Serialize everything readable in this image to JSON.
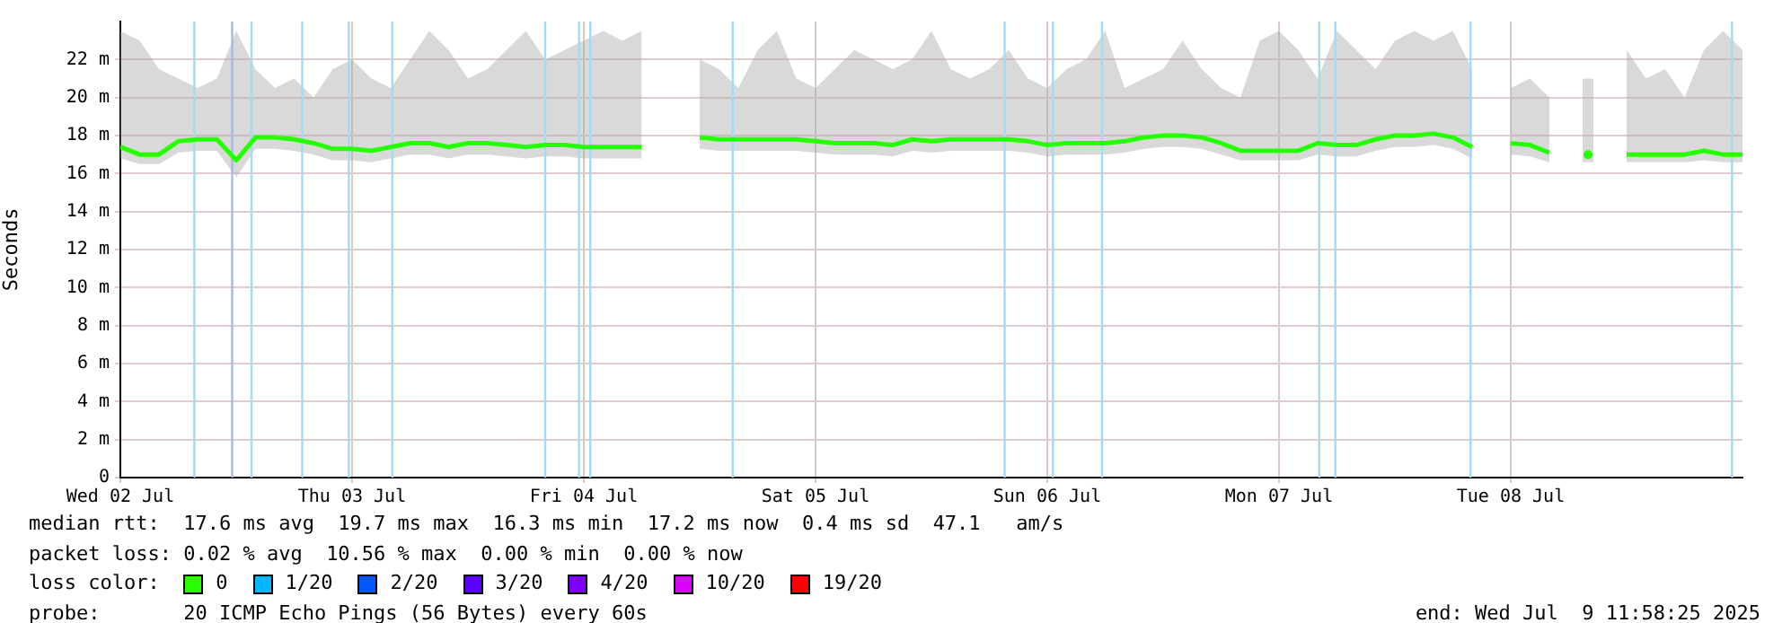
{
  "chart_data": {
    "type": "line",
    "ylabel": "Seconds",
    "xlim": [
      "2025-07-02T12:00",
      "2025-07-09T12:00"
    ],
    "xticks": [
      {
        "value": "2025-07-02T12:00",
        "label": "Wed 02 Jul"
      },
      {
        "value": "2025-07-03T12:00",
        "label": "Thu 03 Jul"
      },
      {
        "value": "2025-07-04T12:00",
        "label": "Fri 04 Jul"
      },
      {
        "value": "2025-07-05T12:00",
        "label": "Sat 05 Jul"
      },
      {
        "value": "2025-07-06T12:00",
        "label": "Sun 06 Jul"
      },
      {
        "value": "2025-07-07T12:00",
        "label": "Mon 07 Jul"
      },
      {
        "value": "2025-07-08T12:00",
        "label": "Tue 08 Jul"
      }
    ],
    "ylim": [
      0,
      24
    ],
    "yticks": [
      0,
      {
        "value": 2,
        "label": "2 m"
      },
      {
        "value": 4,
        "label": "4 m"
      },
      {
        "value": 6,
        "label": "6 m"
      },
      {
        "value": 8,
        "label": "8 m"
      },
      {
        "value": 10,
        "label": "10 m"
      },
      {
        "value": 12,
        "label": "12 m"
      },
      {
        "value": 14,
        "label": "14 m"
      },
      {
        "value": 16,
        "label": "16 m"
      },
      {
        "value": 18,
        "label": "18 m"
      },
      {
        "value": 20,
        "label": "20 m"
      },
      {
        "value": 22,
        "label": "22 m"
      }
    ],
    "x": [
      "2025-07-02T12:00",
      "2025-07-02T14:00",
      "2025-07-02T16:00",
      "2025-07-02T18:00",
      "2025-07-02T20:00",
      "2025-07-02T22:00",
      "2025-07-03T00:00",
      "2025-07-03T02:00",
      "2025-07-03T04:00",
      "2025-07-03T06:00",
      "2025-07-03T08:00",
      "2025-07-03T10:00",
      "2025-07-03T12:00",
      "2025-07-03T14:00",
      "2025-07-03T16:00",
      "2025-07-03T18:00",
      "2025-07-03T20:00",
      "2025-07-03T22:00",
      "2025-07-04T00:00",
      "2025-07-04T02:00",
      "2025-07-04T04:00",
      "2025-07-04T06:00",
      "2025-07-04T08:00",
      "2025-07-04T10:00",
      "2025-07-04T12:00",
      "2025-07-04T14:00",
      "2025-07-04T16:00",
      "2025-07-04T18:00",
      "2025-07-04T20:00",
      "2025-07-04T22:00",
      "2025-07-05T00:00",
      "2025-07-05T02:00",
      "2025-07-05T04:00",
      "2025-07-05T06:00",
      "2025-07-05T08:00",
      "2025-07-05T10:00",
      "2025-07-05T12:00",
      "2025-07-05T14:00",
      "2025-07-05T16:00",
      "2025-07-05T18:00",
      "2025-07-05T20:00",
      "2025-07-05T22:00",
      "2025-07-06T00:00",
      "2025-07-06T02:00",
      "2025-07-06T04:00",
      "2025-07-06T06:00",
      "2025-07-06T08:00",
      "2025-07-06T10:00",
      "2025-07-06T12:00",
      "2025-07-06T14:00",
      "2025-07-06T16:00",
      "2025-07-06T18:00",
      "2025-07-06T20:00",
      "2025-07-06T22:00",
      "2025-07-07T00:00",
      "2025-07-07T02:00",
      "2025-07-07T04:00",
      "2025-07-07T06:00",
      "2025-07-07T08:00",
      "2025-07-07T10:00",
      "2025-07-07T12:00",
      "2025-07-07T14:00",
      "2025-07-07T16:00",
      "2025-07-07T18:00",
      "2025-07-07T20:00",
      "2025-07-07T22:00",
      "2025-07-08T00:00",
      "2025-07-08T02:00",
      "2025-07-08T04:00",
      "2025-07-08T06:00",
      "2025-07-08T08:00",
      "2025-07-08T10:00",
      "2025-07-08T12:00",
      "2025-07-08T14:00",
      "2025-07-08T16:00",
      "2025-07-08T18:00",
      "2025-07-08T20:00",
      "2025-07-08T22:00",
      "2025-07-09T00:00",
      "2025-07-09T02:00",
      "2025-07-09T04:00",
      "2025-07-09T06:00",
      "2025-07-09T08:00",
      "2025-07-09T10:00",
      "2025-07-09T12:00"
    ],
    "series": [
      {
        "name": "0",
        "color": "#26ff00",
        "values": [
          17.4,
          17.0,
          17.0,
          17.7,
          17.8,
          17.8,
          16.7,
          17.9,
          17.9,
          17.8,
          17.6,
          17.3,
          17.3,
          17.2,
          17.4,
          17.6,
          17.6,
          17.4,
          17.6,
          17.6,
          17.5,
          17.4,
          17.5,
          17.5,
          17.4,
          17.4,
          17.4,
          17.4,
          null,
          null,
          17.9,
          17.8,
          17.8,
          17.8,
          17.8,
          17.8,
          17.7,
          17.6,
          17.6,
          17.6,
          17.5,
          17.8,
          17.7,
          17.8,
          17.8,
          17.8,
          17.8,
          17.7,
          17.5,
          17.6,
          17.6,
          17.6,
          17.7,
          17.9,
          18.0,
          18.0,
          17.9,
          17.6,
          17.2,
          17.2,
          17.2,
          17.2,
          17.6,
          17.5,
          17.5,
          17.8,
          18.0,
          18.0,
          18.1,
          17.9,
          17.4,
          null,
          17.6,
          17.5,
          17.1,
          null,
          17.0,
          null,
          17.0,
          17.0,
          17.0,
          17.0,
          17.2,
          17.0,
          17.0
        ],
        "lower": [
          16.8,
          16.5,
          16.5,
          17.1,
          17.2,
          17.2,
          15.8,
          17.3,
          17.3,
          17.2,
          17.0,
          16.7,
          16.7,
          16.6,
          16.8,
          17.0,
          17.0,
          16.8,
          17.0,
          17.0,
          16.9,
          16.8,
          16.9,
          16.9,
          16.8,
          16.8,
          16.8,
          16.8,
          null,
          null,
          17.3,
          17.2,
          17.2,
          17.2,
          17.2,
          17.2,
          17.1,
          17.0,
          17.0,
          17.0,
          16.9,
          17.2,
          17.1,
          17.2,
          17.2,
          17.2,
          17.2,
          17.1,
          16.9,
          17.0,
          17.0,
          17.0,
          17.1,
          17.3,
          17.4,
          17.4,
          17.3,
          17.0,
          16.7,
          16.7,
          16.7,
          16.7,
          17.0,
          16.9,
          16.9,
          17.2,
          17.4,
          17.4,
          17.5,
          17.3,
          16.8,
          null,
          17.0,
          16.9,
          16.6,
          null,
          16.6,
          null,
          16.6,
          16.6,
          16.6,
          16.6,
          16.7,
          16.6,
          16.6
        ],
        "upper": [
          23.5,
          23.0,
          21.5,
          21.0,
          20.5,
          21.0,
          23.5,
          21.5,
          20.5,
          21.0,
          20.0,
          21.5,
          22.0,
          21.0,
          20.5,
          22.0,
          23.5,
          22.5,
          21.0,
          21.5,
          22.5,
          23.5,
          22.0,
          22.5,
          23.0,
          23.5,
          23.0,
          23.5,
          null,
          null,
          22.0,
          21.5,
          20.5,
          22.5,
          23.5,
          21.0,
          20.5,
          21.5,
          22.5,
          22.0,
          21.5,
          22.0,
          23.5,
          21.5,
          21.0,
          21.5,
          22.5,
          21.0,
          20.5,
          21.5,
          22.0,
          23.5,
          20.5,
          21.0,
          21.5,
          23.0,
          21.5,
          20.5,
          20.0,
          23.0,
          23.5,
          22.5,
          21.0,
          23.5,
          22.5,
          21.5,
          23.0,
          23.5,
          23.0,
          23.5,
          21.5,
          null,
          20.5,
          21.0,
          20.0,
          null,
          21.0,
          null,
          22.5,
          21.0,
          21.5,
          20.0,
          22.5,
          23.5,
          22.5
        ]
      },
      {
        "name": "1/20",
        "color": "#00b8ff",
        "values": [
          null,
          null,
          null,
          null,
          null,
          null,
          null,
          null,
          null,
          null,
          null,
          null,
          null,
          null,
          null,
          null,
          null,
          null,
          null,
          null,
          null,
          null,
          null,
          null,
          null,
          null,
          null,
          null,
          null,
          null,
          null,
          null,
          null,
          null,
          null,
          null,
          null,
          null,
          null,
          null,
          null,
          null,
          null,
          null,
          null,
          null,
          null,
          null,
          null,
          null,
          null,
          null,
          null,
          null,
          null,
          null,
          null,
          null,
          null,
          null,
          null,
          null,
          null,
          null,
          null,
          null,
          null,
          null,
          null,
          null,
          null,
          null,
          null,
          null,
          null,
          null,
          null,
          null,
          null,
          null,
          null,
          null,
          null,
          null,
          null
        ]
      },
      {
        "name": "2/20",
        "color": "#0059ff",
        "values": [
          null,
          null,
          null,
          null,
          null,
          null,
          null,
          null,
          null,
          null,
          null,
          null,
          null,
          null,
          null,
          null,
          null,
          null,
          null,
          null,
          null,
          null,
          null,
          null,
          null,
          null,
          null,
          null,
          null,
          null,
          null,
          null,
          null,
          null,
          null,
          null,
          null,
          null,
          null,
          null,
          null,
          null,
          null,
          null,
          null,
          null,
          null,
          null,
          null,
          null,
          null,
          null,
          null,
          null,
          null,
          null,
          null,
          null,
          null,
          null,
          null,
          null,
          null,
          null,
          null,
          null,
          null,
          null,
          null,
          null,
          null,
          null,
          null,
          null,
          null,
          null,
          null,
          null,
          null,
          null,
          null,
          null,
          null,
          null,
          null
        ]
      },
      {
        "name": "3/20",
        "color": "#5e00ff",
        "values": [
          null,
          null,
          null,
          null,
          null,
          null,
          null,
          null,
          null,
          null,
          null,
          null,
          null,
          null,
          null,
          null,
          null,
          null,
          null,
          null,
          null,
          null,
          null,
          null,
          null,
          null,
          null,
          null,
          null,
          null,
          null,
          null,
          null,
          null,
          null,
          null,
          null,
          null,
          null,
          null,
          null,
          null,
          null,
          null,
          null,
          null,
          null,
          null,
          null,
          null,
          null,
          null,
          null,
          null,
          null,
          null,
          null,
          null,
          null,
          null,
          null,
          null,
          null,
          null,
          null,
          null,
          null,
          null,
          null,
          null,
          null,
          null,
          null,
          null,
          null,
          null,
          null,
          null,
          null,
          null,
          null,
          null,
          null,
          null,
          null
        ]
      },
      {
        "name": "4/20",
        "color": "#7e00ff",
        "values": [
          null,
          null,
          null,
          null,
          null,
          null,
          null,
          null,
          null,
          null,
          null,
          null,
          null,
          null,
          null,
          null,
          null,
          null,
          null,
          null,
          null,
          null,
          null,
          null,
          null,
          null,
          null,
          null,
          null,
          null,
          null,
          null,
          null,
          null,
          null,
          null,
          null,
          null,
          null,
          null,
          null,
          null,
          null,
          null,
          null,
          null,
          null,
          null,
          null,
          null,
          null,
          null,
          null,
          null,
          null,
          null,
          null,
          null,
          null,
          null,
          null,
          null,
          null,
          null,
          null,
          null,
          null,
          null,
          null,
          null,
          null,
          null,
          null,
          null,
          null,
          null,
          null,
          null,
          null,
          null,
          null,
          null,
          null,
          null,
          null
        ]
      },
      {
        "name": "10/20",
        "color": "#dd00ff",
        "values": [
          null,
          null,
          null,
          null,
          null,
          null,
          null,
          null,
          null,
          null,
          null,
          null,
          null,
          null,
          null,
          null,
          null,
          null,
          null,
          null,
          null,
          null,
          null,
          null,
          null,
          null,
          null,
          null,
          null,
          null,
          null,
          null,
          null,
          null,
          null,
          null,
          null,
          null,
          null,
          null,
          null,
          null,
          null,
          null,
          null,
          null,
          null,
          null,
          null,
          null,
          null,
          null,
          null,
          null,
          null,
          null,
          null,
          null,
          null,
          null,
          null,
          null,
          null,
          null,
          null,
          null,
          null,
          null,
          null,
          null,
          null,
          null,
          null,
          null,
          null,
          null,
          null,
          null,
          null,
          null,
          null,
          null,
          null,
          null,
          null
        ]
      },
      {
        "name": "19/20",
        "color": "#ff0000",
        "values": [
          null,
          null,
          null,
          null,
          null,
          null,
          null,
          null,
          null,
          null,
          null,
          null,
          null,
          null,
          null,
          null,
          null,
          null,
          null,
          null,
          null,
          null,
          null,
          null,
          null,
          null,
          null,
          null,
          null,
          null,
          null,
          null,
          null,
          null,
          null,
          null,
          null,
          null,
          null,
          null,
          null,
          null,
          null,
          null,
          null,
          null,
          null,
          null,
          null,
          null,
          null,
          null,
          null,
          null,
          null,
          null,
          null,
          null,
          null,
          null,
          null,
          null,
          null,
          null,
          null,
          null,
          null,
          null,
          null,
          null,
          null,
          null,
          null,
          null,
          null,
          null,
          null,
          null,
          null,
          null,
          null,
          null,
          null,
          null,
          null
        ]
      }
    ],
    "ref_lines": [
      {
        "axis": "x",
        "value": "2025-07-02T19:40",
        "color": "#9fdcf8"
      },
      {
        "axis": "x",
        "value": "2025-07-02T23:35",
        "color": "#a6b4f8"
      },
      {
        "axis": "x",
        "value": "2025-07-03T01:35",
        "color": "#9fdcf8"
      },
      {
        "axis": "x",
        "value": "2025-07-03T06:50",
        "color": "#9fdcf8"
      },
      {
        "axis": "x",
        "value": "2025-07-03T11:40",
        "color": "#9fdcf8"
      },
      {
        "axis": "x",
        "value": "2025-07-03T16:10",
        "color": "#9fdcf8"
      },
      {
        "axis": "x",
        "value": "2025-07-04T08:00",
        "color": "#9fdcf8"
      },
      {
        "axis": "x",
        "value": "2025-07-04T11:30",
        "color": "#9fdcf8"
      },
      {
        "axis": "x",
        "value": "2025-07-04T12:40",
        "color": "#9fdcf8"
      },
      {
        "axis": "x",
        "value": "2025-07-05T03:25",
        "color": "#9fdcf8"
      },
      {
        "axis": "x",
        "value": "2025-07-06T07:35",
        "color": "#9fdcf8"
      },
      {
        "axis": "x",
        "value": "2025-07-06T12:35",
        "color": "#9fdcf8"
      },
      {
        "axis": "x",
        "value": "2025-07-06T17:40",
        "color": "#9fdcf8"
      },
      {
        "axis": "x",
        "value": "2025-07-07T16:10",
        "color": "#9fdcf8"
      },
      {
        "axis": "x",
        "value": "2025-07-07T17:50",
        "color": "#9fdcf8"
      },
      {
        "axis": "x",
        "value": "2025-07-08T07:50",
        "color": "#9fdcf8"
      },
      {
        "axis": "x",
        "value": "2025-07-09T10:55",
        "color": "#9fdcf8"
      }
    ],
    "grid": true,
    "legend": "bottom left",
    "legend_title": "loss color:",
    "annotations": [
      "median rtt:  17.6 ms avg  19.7 ms max  16.3 ms min  17.2 ms now  0.4 ms sd  47.1   am/s",
      "packet loss: 0.02 % avg  10.56 % max  0.00 % min  0.00 % now",
      "probe:       20 ICMP Echo Pings (56 Bytes) every 60s",
      "end: Wed Jul  9 11:58:25 2025"
    ]
  }
}
